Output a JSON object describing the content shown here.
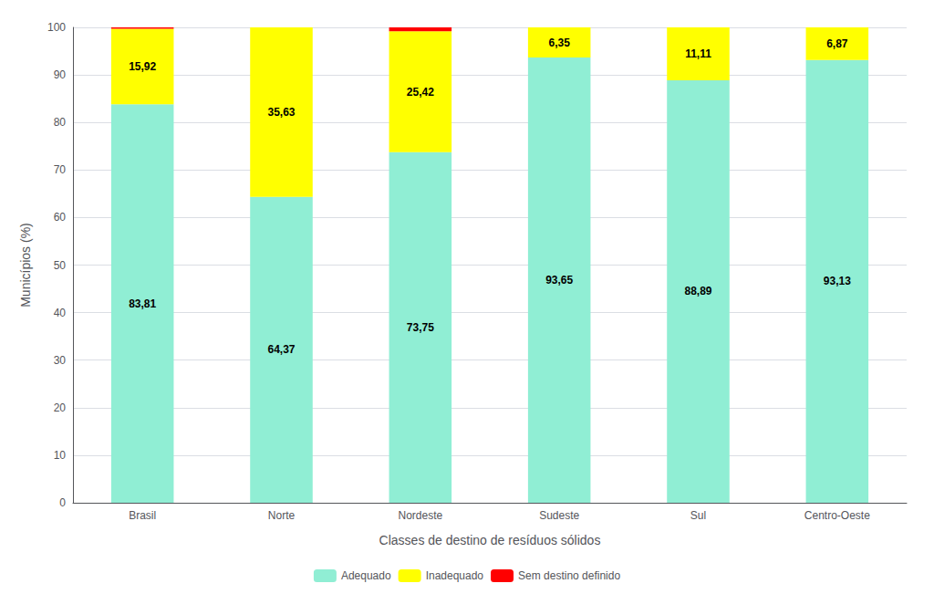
{
  "chart_data": {
    "type": "bar",
    "stacked": true,
    "grid": true,
    "legend": "bottom",
    "data_labels": true,
    "xlabel": "Classes de destino de resíduos sólidos",
    "ylabel": "Municípios (%)",
    "categories": [
      "Brasil",
      "Norte",
      "Nordeste",
      "Sudeste",
      "Sul",
      "Centro-Oeste"
    ],
    "ylim": [
      0,
      100
    ],
    "yticks": [
      0,
      10,
      20,
      30,
      40,
      50,
      60,
      70,
      80,
      90,
      100
    ],
    "series": [
      {
        "name": "Adequado",
        "color": "#90EED4",
        "values": [
          83.81,
          64.37,
          73.75,
          93.65,
          88.89,
          93.13
        ],
        "value_labels": [
          "83,81",
          "64,37",
          "73,75",
          "93,65",
          "88,89",
          "93,13"
        ]
      },
      {
        "name": "Inadequado",
        "color": "#FFFF00",
        "values": [
          15.92,
          35.63,
          25.42,
          6.35,
          11.11,
          6.87
        ],
        "value_labels": [
          "15,92",
          "35,63",
          "25,42",
          "6,35",
          "11,11",
          "6,87"
        ]
      },
      {
        "name": "Sem destino definido",
        "color": "#FF0000",
        "values": [
          0.27,
          0.0,
          0.83,
          0.0,
          0.0,
          0.0
        ]
      }
    ]
  }
}
